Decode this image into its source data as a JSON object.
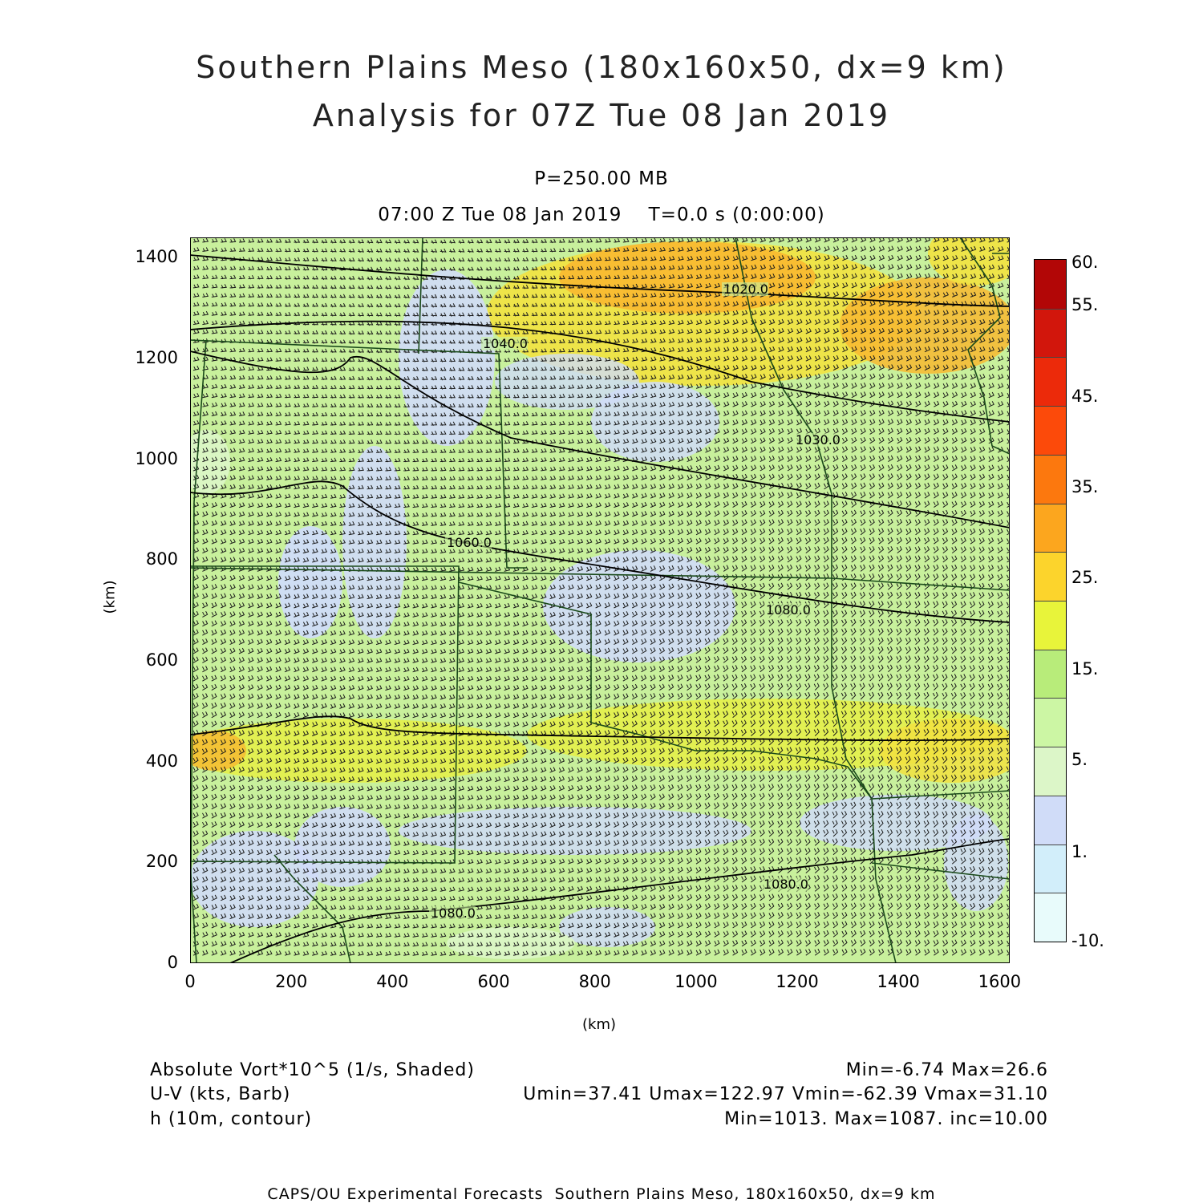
{
  "header": {
    "title_line1": "Southern Plains Meso (180x160x50, dx=9 km)",
    "title_line2": "Analysis for 07Z Tue 08 Jan 2019",
    "level": "P=250.00 MB",
    "time": "07:00 Z Tue 08 Jan 2019    T=0.0 s (0:00:00)"
  },
  "axes": {
    "x_ticks": [
      "0",
      "200",
      "400",
      "600",
      "800",
      "1000",
      "1200",
      "1400",
      "1600"
    ],
    "y_ticks": [
      "0",
      "200",
      "400",
      "600",
      "800",
      "1000",
      "1200",
      "1400"
    ],
    "x_unit": "(km)",
    "y_unit": "(km)",
    "xlim": [
      0,
      1620
    ],
    "ylim": [
      0,
      1440
    ]
  },
  "colorbar": {
    "labels": [
      "60.",
      "55.",
      "45.",
      "35.",
      "25.",
      "15.",
      "5.",
      "1.",
      "-10."
    ],
    "colors": [
      "#e8fbfb",
      "#d2eefa",
      "#d0dcf8",
      "#dcf6c8",
      "#ccf6a4",
      "#b8ec7a",
      "#e8f43a",
      "#fcd42c",
      "#fca61e",
      "#fc780e",
      "#fc4a0a",
      "#ec2a0a",
      "#d2160c",
      "#b20606"
    ]
  },
  "legend": {
    "line1_left": "Absolute Vort*10^5 (1/s, Shaded)",
    "line1_right": "Min=-6.74  Max=26.6",
    "line2_left": "U-V (kts, Barb)",
    "line2_right": "Umin=37.41  Umax=122.97  Vmin=-62.39  Vmax=31.10",
    "line3_left": "h (10m, contour)",
    "line3_right": "Min=1013.  Max=1087.  inc=10.00"
  },
  "contour_labels": [
    "1020.0",
    "1040.0",
    "1030.0",
    "1060.0",
    "1080.0",
    "1080.0",
    "1080.0"
  ],
  "footer": "CAPS/OU Experimental Forecasts  Southern Plains Meso, 180x160x50, dx=9 km",
  "colors": {
    "contour": "#000000",
    "state_border": "#1a4a1a",
    "barb": "#1a1a1a"
  }
}
